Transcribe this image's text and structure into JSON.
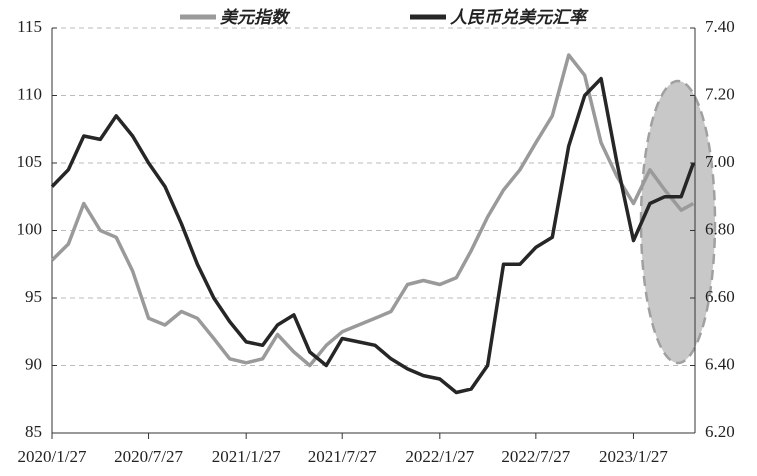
{
  "chart_data": {
    "type": "line",
    "x": [
      "2020/1/27",
      "2020/2/27",
      "2020/3/27",
      "2020/4/27",
      "2020/5/27",
      "2020/6/27",
      "2020/7/27",
      "2020/8/27",
      "2020/9/27",
      "2020/10/27",
      "2020/11/27",
      "2020/12/27",
      "2021/1/27",
      "2021/2/27",
      "2021/3/27",
      "2021/4/27",
      "2021/5/27",
      "2021/6/27",
      "2021/7/27",
      "2021/8/27",
      "2021/9/27",
      "2021/10/27",
      "2021/11/27",
      "2021/12/27",
      "2022/1/27",
      "2022/2/27",
      "2022/3/27",
      "2022/4/27",
      "2022/5/27",
      "2022/6/27",
      "2022/7/27",
      "2022/8/27",
      "2022/9/27",
      "2022/10/27",
      "2022/11/27",
      "2022/12/27",
      "2023/1/27",
      "2023/2/27",
      "2023/3/27",
      "2023/4/27",
      "2023/5/20"
    ],
    "series": [
      {
        "name": "美元指数",
        "color": "#9a9a9a",
        "axis": "y",
        "values": [
          97.8,
          99,
          102,
          100,
          99.5,
          97,
          93.5,
          93,
          94,
          93.5,
          92,
          90.5,
          90.2,
          90.5,
          92.3,
          91,
          90,
          91.5,
          92.5,
          93,
          93.5,
          94,
          96,
          96.3,
          96,
          96.5,
          98.5,
          101,
          103,
          104.5,
          106.5,
          108.5,
          113,
          111.5,
          106.5,
          104,
          102,
          104.5,
          103,
          101.5,
          102
        ]
      },
      {
        "name": "人民币兑美元汇率",
        "color": "#262626",
        "axis": "y2",
        "values": [
          6.93,
          6.98,
          7.08,
          7.07,
          7.14,
          7.08,
          7.0,
          6.93,
          6.82,
          6.7,
          6.6,
          6.53,
          6.47,
          6.46,
          6.52,
          6.55,
          6.44,
          6.4,
          6.48,
          6.47,
          6.46,
          6.42,
          6.39,
          6.37,
          6.36,
          6.32,
          6.33,
          6.4,
          6.7,
          6.7,
          6.75,
          6.78,
          7.05,
          7.2,
          7.25,
          7.0,
          6.77,
          6.88,
          6.9,
          6.9,
          7.0
        ]
      }
    ],
    "xlim": [
      "2020/1/27",
      "2023/5/23"
    ],
    "xticks": [
      "2020/1/27",
      "2020/7/27",
      "2021/1/27",
      "2021/7/27",
      "2022/1/27",
      "2022/7/27",
      "2023/1/27"
    ],
    "ylim": [
      85,
      115
    ],
    "yticks": [
      85,
      90,
      95,
      100,
      105,
      110,
      115
    ],
    "y2lim": [
      6.2,
      7.4
    ],
    "y2ticks": [
      {
        "value": 6.2,
        "label": "6.20"
      },
      {
        "value": 6.4,
        "label": "6.40"
      },
      {
        "value": 6.6,
        "label": "6.60"
      },
      {
        "value": 6.8,
        "label": "6.80"
      },
      {
        "value": 7.0,
        "label": "7.00"
      },
      {
        "value": 7.2,
        "label": "7.20"
      },
      {
        "value": 7.4,
        "label": "7.40"
      }
    ],
    "grid": true,
    "legend": "top"
  }
}
